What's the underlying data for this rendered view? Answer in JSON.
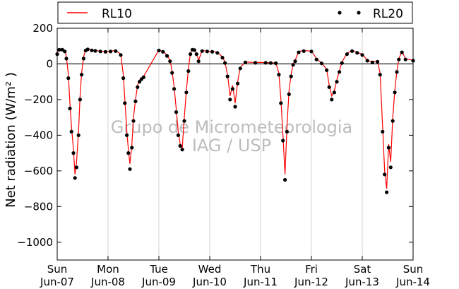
{
  "chart_data": {
    "type": "line",
    "ylabel": "Net radiation (W/m² )",
    "ylim": [
      -1100,
      200
    ],
    "yticks": [
      200,
      0,
      -200,
      -400,
      -600,
      -800,
      -1000
    ],
    "ytick_labels": [
      "200",
      "0",
      "−200",
      "−400",
      "−600",
      "−800",
      "−1000"
    ],
    "xlim": [
      0,
      7
    ],
    "xticks": [
      {
        "x": 0,
        "day": "Sun",
        "date": "Jun-07"
      },
      {
        "x": 1,
        "day": "Mon",
        "date": "Jun-08"
      },
      {
        "x": 2,
        "day": "Tue",
        "date": "Jun-09"
      },
      {
        "x": 3,
        "day": "Wed",
        "date": "Jun-10"
      },
      {
        "x": 4,
        "day": "Thu",
        "date": "Jun-11"
      },
      {
        "x": 5,
        "day": "Fri",
        "date": "Jun-12"
      },
      {
        "x": 6,
        "day": "Sat",
        "date": "Jun-13"
      },
      {
        "x": 7,
        "day": "Sun",
        "date": "Jun-14"
      }
    ],
    "grid": "vertical",
    "legend_position": "top",
    "watermark": [
      "Grupo de Micrometeorologia",
      "IAG / USP"
    ],
    "series": [
      {
        "name": "RL10",
        "color": "#ff0000",
        "style": "line",
        "x": [
          0.0,
          0.04,
          0.1,
          0.15,
          0.18,
          0.22,
          0.25,
          0.28,
          0.32,
          0.35,
          0.38,
          0.42,
          0.45,
          0.48,
          0.52,
          0.56,
          0.6,
          0.68,
          0.75,
          0.85,
          0.95,
          1.05,
          1.15,
          1.25,
          1.3,
          1.33,
          1.37,
          1.4,
          1.43,
          1.47,
          1.5,
          1.54,
          1.58,
          1.62,
          1.66,
          1.7,
          2.0,
          2.08,
          2.16,
          2.22,
          2.26,
          2.3,
          2.34,
          2.38,
          2.42,
          2.46,
          2.5,
          2.54,
          2.58,
          2.62,
          2.66,
          2.7,
          2.74,
          2.78,
          2.85,
          2.95,
          3.05,
          3.15,
          3.25,
          3.3,
          3.35,
          3.4,
          3.45,
          3.5,
          3.55,
          3.6,
          3.7,
          3.9,
          4.1,
          4.2,
          4.3,
          4.36,
          4.4,
          4.44,
          4.48,
          4.52,
          4.56,
          4.6,
          4.64,
          4.68,
          4.75,
          4.85,
          5.0,
          5.1,
          5.2,
          5.3,
          5.35,
          5.4,
          5.45,
          5.5,
          5.55,
          5.6,
          5.7,
          5.8,
          5.9,
          6.0,
          6.1,
          6.2,
          6.3,
          6.35,
          6.4,
          6.44,
          6.48,
          6.52,
          6.56,
          6.6,
          6.64,
          6.68,
          6.72,
          6.78,
          6.85,
          7.0
        ],
        "y": [
          60,
          85,
          82,
          75,
          40,
          -60,
          -220,
          -350,
          -480,
          -620,
          -550,
          -380,
          -180,
          -50,
          40,
          80,
          85,
          78,
          75,
          72,
          70,
          72,
          75,
          55,
          -60,
          -200,
          -380,
          -480,
          -560,
          -450,
          -300,
          -200,
          -120,
          -90,
          -80,
          -70,
          78,
          70,
          50,
          20,
          -40,
          -130,
          -250,
          -380,
          -450,
          -470,
          -300,
          -150,
          -30,
          60,
          85,
          80,
          60,
          20,
          75,
          72,
          70,
          65,
          40,
          10,
          -60,
          -180,
          -120,
          -220,
          -100,
          -20,
          10,
          8,
          8,
          6,
          5,
          -50,
          -200,
          -400,
          -620,
          -350,
          -150,
          -60,
          0,
          20,
          70,
          75,
          72,
          30,
          5,
          -30,
          -120,
          -180,
          -150,
          -90,
          -40,
          10,
          60,
          75,
          65,
          55,
          20,
          10,
          15,
          -50,
          -350,
          -600,
          -700,
          -450,
          -550,
          -300,
          -150,
          -40,
          30,
          70,
          30,
          20
        ]
      },
      {
        "name": "RL20",
        "color": "#000000",
        "style": "markers",
        "x": [
          0.0,
          0.04,
          0.1,
          0.15,
          0.18,
          0.22,
          0.25,
          0.28,
          0.32,
          0.35,
          0.38,
          0.42,
          0.45,
          0.48,
          0.52,
          0.56,
          0.6,
          0.68,
          0.75,
          0.85,
          0.95,
          1.05,
          1.15,
          1.25,
          1.3,
          1.33,
          1.37,
          1.4,
          1.43,
          1.47,
          1.5,
          1.54,
          1.58,
          1.62,
          1.66,
          1.7,
          2.0,
          2.08,
          2.16,
          2.22,
          2.26,
          2.3,
          2.34,
          2.38,
          2.42,
          2.46,
          2.5,
          2.54,
          2.58,
          2.62,
          2.66,
          2.7,
          2.74,
          2.78,
          2.85,
          2.95,
          3.05,
          3.15,
          3.25,
          3.3,
          3.35,
          3.4,
          3.45,
          3.5,
          3.55,
          3.6,
          3.7,
          3.9,
          4.1,
          4.2,
          4.3,
          4.36,
          4.4,
          4.44,
          4.48,
          4.52,
          4.56,
          4.6,
          4.64,
          4.68,
          4.75,
          4.85,
          5.0,
          5.1,
          5.2,
          5.3,
          5.35,
          5.4,
          5.45,
          5.5,
          5.55,
          5.6,
          5.7,
          5.8,
          5.9,
          6.0,
          6.1,
          6.2,
          6.3,
          6.35,
          6.4,
          6.44,
          6.48,
          6.52,
          6.56,
          6.6,
          6.64,
          6.68,
          6.72,
          6.78,
          6.85,
          7.0
        ],
        "y": [
          55,
          80,
          80,
          70,
          30,
          -80,
          -250,
          -380,
          -500,
          -640,
          -580,
          -400,
          -200,
          -60,
          30,
          75,
          82,
          76,
          73,
          70,
          68,
          70,
          72,
          50,
          -80,
          -220,
          -400,
          -500,
          -590,
          -470,
          -320,
          -210,
          -130,
          -100,
          -85,
          -75,
          75,
          68,
          45,
          15,
          -50,
          -140,
          -270,
          -400,
          -460,
          -480,
          -320,
          -160,
          -40,
          55,
          80,
          78,
          55,
          15,
          72,
          70,
          68,
          62,
          35,
          5,
          -70,
          -200,
          -140,
          -240,
          -110,
          -25,
          8,
          6,
          6,
          5,
          4,
          -60,
          -220,
          -430,
          -650,
          -380,
          -170,
          -70,
          -5,
          15,
          65,
          72,
          70,
          25,
          3,
          -35,
          -130,
          -200,
          -160,
          -100,
          -45,
          5,
          55,
          72,
          62,
          50,
          18,
          8,
          12,
          -60,
          -380,
          -620,
          -720,
          -470,
          -580,
          -320,
          -160,
          -45,
          25,
          65,
          25,
          18
        ]
      }
    ]
  }
}
